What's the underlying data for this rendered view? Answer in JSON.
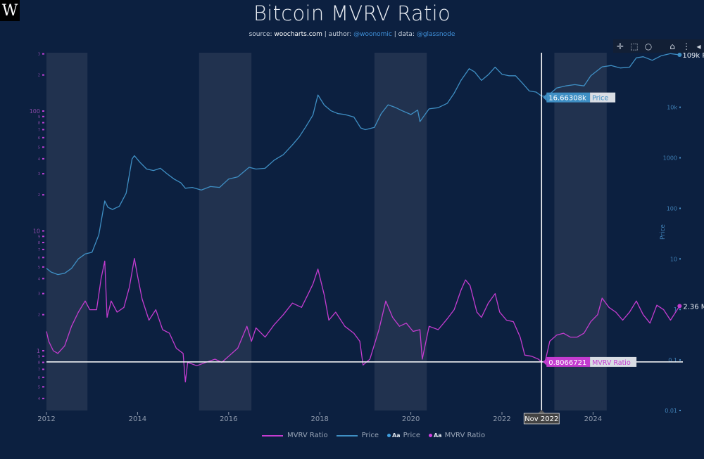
{
  "logo": {
    "text": "W"
  },
  "header": {
    "title": "Bitcoin MVRV Ratio",
    "source_label": "source: ",
    "source_value": "woocharts.com",
    "sep1": " | author: ",
    "author": "@woonomic",
    "sep2": " | data: ",
    "data_source": "@glassnode"
  },
  "modebar": {
    "icons": [
      "pan-icon",
      "box-select-icon",
      "lasso-select-icon",
      "home-icon",
      "spike-lines-icon",
      "collapse-arrow-icon"
    ],
    "glyphs": [
      "✛",
      "⬚",
      "○",
      "⌂",
      "⋮",
      "◂"
    ]
  },
  "hover": {
    "date_label": "Nov 2022",
    "date_value": 2022.87,
    "price_value_text": "16.66308k",
    "price_series_label": "Price",
    "price_value": 16663.08,
    "mvrv_value_text": "0.8066721",
    "mvrv_series_label": "MVRV Ratio",
    "mvrv_value": 0.8066721
  },
  "end_labels": {
    "price": "109k P",
    "mvrv": "2.36 M"
  },
  "legend": {
    "items": [
      {
        "type": "line",
        "label": "MVRV Ratio",
        "color": "#c43cd0"
      },
      {
        "type": "line",
        "label": "Price",
        "color": "#3f8fc4"
      },
      {
        "type": "marker",
        "marker_text": "Aa",
        "label": "Price",
        "color": "#3f9fe0"
      },
      {
        "type": "marker",
        "marker_text": "Aa",
        "label": "MVRV Ratio",
        "color": "#d23ee0"
      }
    ]
  },
  "colors": {
    "background": "#0c2040",
    "band": "#21324f",
    "price": "#3f8fc4",
    "mvrv": "#c43cd0",
    "crosshair": "#ffffff",
    "left_axis": "#b43cc8",
    "right_axis": "#3f8fc4",
    "x_axis_text": "#8f9aac"
  },
  "chart_data": {
    "type": "line",
    "title": "Bitcoin MVRV Ratio",
    "xlabel": "",
    "y_left_label": "",
    "y_right_label": "Price",
    "x_range": [
      2012.0,
      2026.0
    ],
    "x_ticks": [
      2012,
      2014,
      2016,
      2018,
      2020,
      2022,
      2024
    ],
    "y_left": {
      "scale": "log",
      "range": [
        0.35,
        350
      ],
      "major_ticks": [
        1,
        10,
        100
      ],
      "major_labels": [
        "1",
        "10",
        "100"
      ],
      "minor_ticks": [
        0.4,
        0.5,
        0.6,
        0.7,
        0.8,
        0.9,
        2,
        3,
        4,
        5,
        6,
        7,
        8,
        9,
        20,
        30,
        40,
        50,
        60,
        70,
        80,
        90,
        200,
        300
      ],
      "minor_labels": [
        "4",
        "5",
        "6",
        "7",
        "8",
        "9",
        "2",
        "3",
        "4",
        "5",
        "6",
        "7",
        "8",
        "9",
        "2",
        "3",
        "4",
        "5",
        "6",
        "7",
        "8",
        "9",
        "2",
        "3"
      ]
    },
    "y_right": {
      "scale": "log",
      "range": [
        0.01,
        200000
      ],
      "ticks": [
        0.01,
        0.1,
        1,
        10,
        100,
        1000,
        10000,
        100000
      ],
      "tick_labels": [
        "0.01",
        "0.1",
        "1",
        "10",
        "100",
        "1000",
        "10k",
        "100k"
      ]
    },
    "shaded_bands": [
      [
        2012.0,
        2012.9
      ],
      [
        2015.35,
        2016.5
      ],
      [
        2019.2,
        2020.35
      ],
      [
        2023.15,
        2024.3
      ]
    ],
    "grid": false,
    "legend_position": "bottom-center",
    "series": [
      {
        "name": "Price",
        "axis": "right",
        "x": [
          2012.0,
          2012.1,
          2012.25,
          2012.4,
          2012.55,
          2012.7,
          2012.85,
          2013.0,
          2013.15,
          2013.28,
          2013.35,
          2013.45,
          2013.6,
          2013.75,
          2013.88,
          2013.93,
          2014.05,
          2014.2,
          2014.35,
          2014.5,
          2014.65,
          2014.8,
          2014.95,
          2015.05,
          2015.2,
          2015.4,
          2015.6,
          2015.8,
          2016.0,
          2016.2,
          2016.45,
          2016.6,
          2016.8,
          2017.0,
          2017.2,
          2017.4,
          2017.55,
          2017.7,
          2017.85,
          2017.96,
          2018.1,
          2018.25,
          2018.4,
          2018.55,
          2018.75,
          2018.9,
          2019.0,
          2019.2,
          2019.35,
          2019.5,
          2019.65,
          2019.8,
          2020.0,
          2020.15,
          2020.2,
          2020.4,
          2020.6,
          2020.8,
          2020.95,
          2021.1,
          2021.28,
          2021.4,
          2021.55,
          2021.7,
          2021.85,
          2022.0,
          2022.15,
          2022.3,
          2022.45,
          2022.6,
          2022.75,
          2022.87,
          2023.0,
          2023.2,
          2023.4,
          2023.6,
          2023.8,
          2023.95,
          2024.2,
          2024.4,
          2024.6,
          2024.8,
          2024.95,
          2025.1,
          2025.3,
          2025.5,
          2025.7,
          2025.9
        ],
        "values": [
          6.5,
          5.5,
          4.9,
          5.2,
          6.5,
          10,
          12.5,
          13.5,
          30,
          140,
          105,
          95,
          110,
          200,
          950,
          1100,
          820,
          600,
          560,
          620,
          480,
          380,
          320,
          250,
          260,
          230,
          270,
          260,
          380,
          420,
          650,
          600,
          620,
          900,
          1150,
          1800,
          2600,
          4200,
          7000,
          17500,
          11000,
          8500,
          7500,
          7200,
          6400,
          3900,
          3600,
          4000,
          7500,
          11200,
          10000,
          8600,
          7200,
          8800,
          5200,
          9300,
          9800,
          12000,
          19000,
          34000,
          58000,
          50000,
          34000,
          44000,
          62000,
          45000,
          42000,
          42000,
          30000,
          21000,
          20000,
          16663,
          16700,
          24000,
          26500,
          28000,
          26500,
          42000,
          63000,
          67000,
          60000,
          62000,
          95000,
          100000,
          85000,
          105000,
          115000,
          109000
        ]
      },
      {
        "name": "MVRV Ratio",
        "axis": "left",
        "x": [
          2012.0,
          2012.05,
          2012.15,
          2012.25,
          2012.4,
          2012.55,
          2012.7,
          2012.85,
          2012.95,
          2013.1,
          2013.2,
          2013.28,
          2013.33,
          2013.42,
          2013.55,
          2013.7,
          2013.82,
          2013.93,
          2014.0,
          2014.1,
          2014.25,
          2014.4,
          2014.55,
          2014.7,
          2014.85,
          2015.0,
          2015.05,
          2015.1,
          2015.3,
          2015.5,
          2015.7,
          2015.85,
          2016.0,
          2016.2,
          2016.4,
          2016.5,
          2016.6,
          2016.8,
          2017.0,
          2017.2,
          2017.4,
          2017.6,
          2017.75,
          2017.85,
          2017.96,
          2018.1,
          2018.2,
          2018.35,
          2018.55,
          2018.75,
          2018.88,
          2018.95,
          2019.1,
          2019.3,
          2019.45,
          2019.6,
          2019.75,
          2019.9,
          2020.05,
          2020.2,
          2020.25,
          2020.4,
          2020.6,
          2020.8,
          2020.95,
          2021.1,
          2021.2,
          2021.3,
          2021.45,
          2021.55,
          2021.7,
          2021.85,
          2021.95,
          2022.1,
          2022.25,
          2022.4,
          2022.5,
          2022.65,
          2022.8,
          2022.87,
          2022.95,
          2023.05,
          2023.2,
          2023.35,
          2023.5,
          2023.65,
          2023.8,
          2023.95,
          2024.1,
          2024.2,
          2024.35,
          2024.5,
          2024.65,
          2024.8,
          2024.95,
          2025.1,
          2025.25,
          2025.4,
          2025.55,
          2025.7,
          2025.9
        ],
        "values": [
          1.45,
          1.2,
          1.0,
          0.95,
          1.1,
          1.6,
          2.1,
          2.6,
          2.2,
          2.2,
          4.0,
          5.6,
          1.9,
          2.6,
          2.1,
          2.3,
          3.4,
          5.9,
          4.2,
          2.7,
          1.8,
          2.2,
          1.5,
          1.4,
          1.05,
          0.95,
          0.55,
          0.8,
          0.75,
          0.8,
          0.85,
          0.8,
          0.9,
          1.05,
          1.6,
          1.2,
          1.55,
          1.3,
          1.65,
          2.0,
          2.5,
          2.3,
          3.0,
          3.6,
          4.8,
          2.9,
          1.8,
          2.1,
          1.6,
          1.4,
          1.2,
          0.76,
          0.85,
          1.5,
          2.6,
          1.9,
          1.6,
          1.7,
          1.45,
          1.5,
          0.85,
          1.6,
          1.5,
          1.85,
          2.2,
          3.2,
          3.9,
          3.5,
          2.1,
          1.9,
          2.5,
          3.0,
          2.1,
          1.8,
          1.75,
          1.3,
          0.92,
          0.9,
          0.85,
          0.807,
          0.82,
          1.2,
          1.35,
          1.4,
          1.3,
          1.3,
          1.4,
          1.75,
          2.0,
          2.75,
          2.3,
          2.1,
          1.8,
          2.1,
          2.6,
          2.0,
          1.7,
          2.4,
          2.2,
          1.8,
          2.36
        ]
      }
    ]
  }
}
